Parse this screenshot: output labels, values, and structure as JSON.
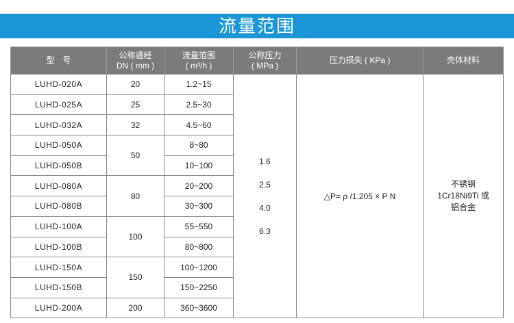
{
  "title": "流量范围",
  "headers": {
    "model": "型　号",
    "dn": "公称通经",
    "dn2": "DN ( mm )",
    "flow": "流量范围",
    "flow2": "( m³/h )",
    "pressure": "公称压力",
    "pressure2": "( MPa )",
    "loss": "压力损失 ( KPa )",
    "material": "壳体材料"
  },
  "rows": [
    {
      "model": "LUHD-020A",
      "dn": "20",
      "flow": "1.2~15"
    },
    {
      "model": "LUHD-025A",
      "dn": "25",
      "flow": "2.5~30"
    },
    {
      "model": "LUHD-032A",
      "dn": "32",
      "flow": "4.5~60"
    },
    {
      "model": "LUHD-050A",
      "dn": "50",
      "flow": "8~80"
    },
    {
      "model": "LUHD-050B",
      "flow": "10~100"
    },
    {
      "model": "LUHD-080A",
      "dn": "80",
      "flow": "20~200"
    },
    {
      "model": "LUHD-080B",
      "flow": "30~300"
    },
    {
      "model": "LUHD-100A",
      "dn": "100",
      "flow": "55~550"
    },
    {
      "model": "LUHD-100B",
      "flow": "80~800"
    },
    {
      "model": "LUHD-150A",
      "dn": "150",
      "flow": "100~1200"
    },
    {
      "model": "LUHD-150B",
      "flow": "150~2250"
    },
    {
      "model": "LUHD-200A",
      "dn": "200",
      "flow": "360~3600"
    }
  ],
  "pressures": [
    "1.6",
    "2.5",
    "4.0",
    "6.3"
  ],
  "loss_formula": "△P= ρ /1.205 × P N",
  "material": {
    "line1": "不锈钢",
    "line2": "1Cr18Ni9Ti 或",
    "line3": "铝合金"
  },
  "colors": {
    "banner": "#1a96d6",
    "header": "#7b7b7b"
  }
}
